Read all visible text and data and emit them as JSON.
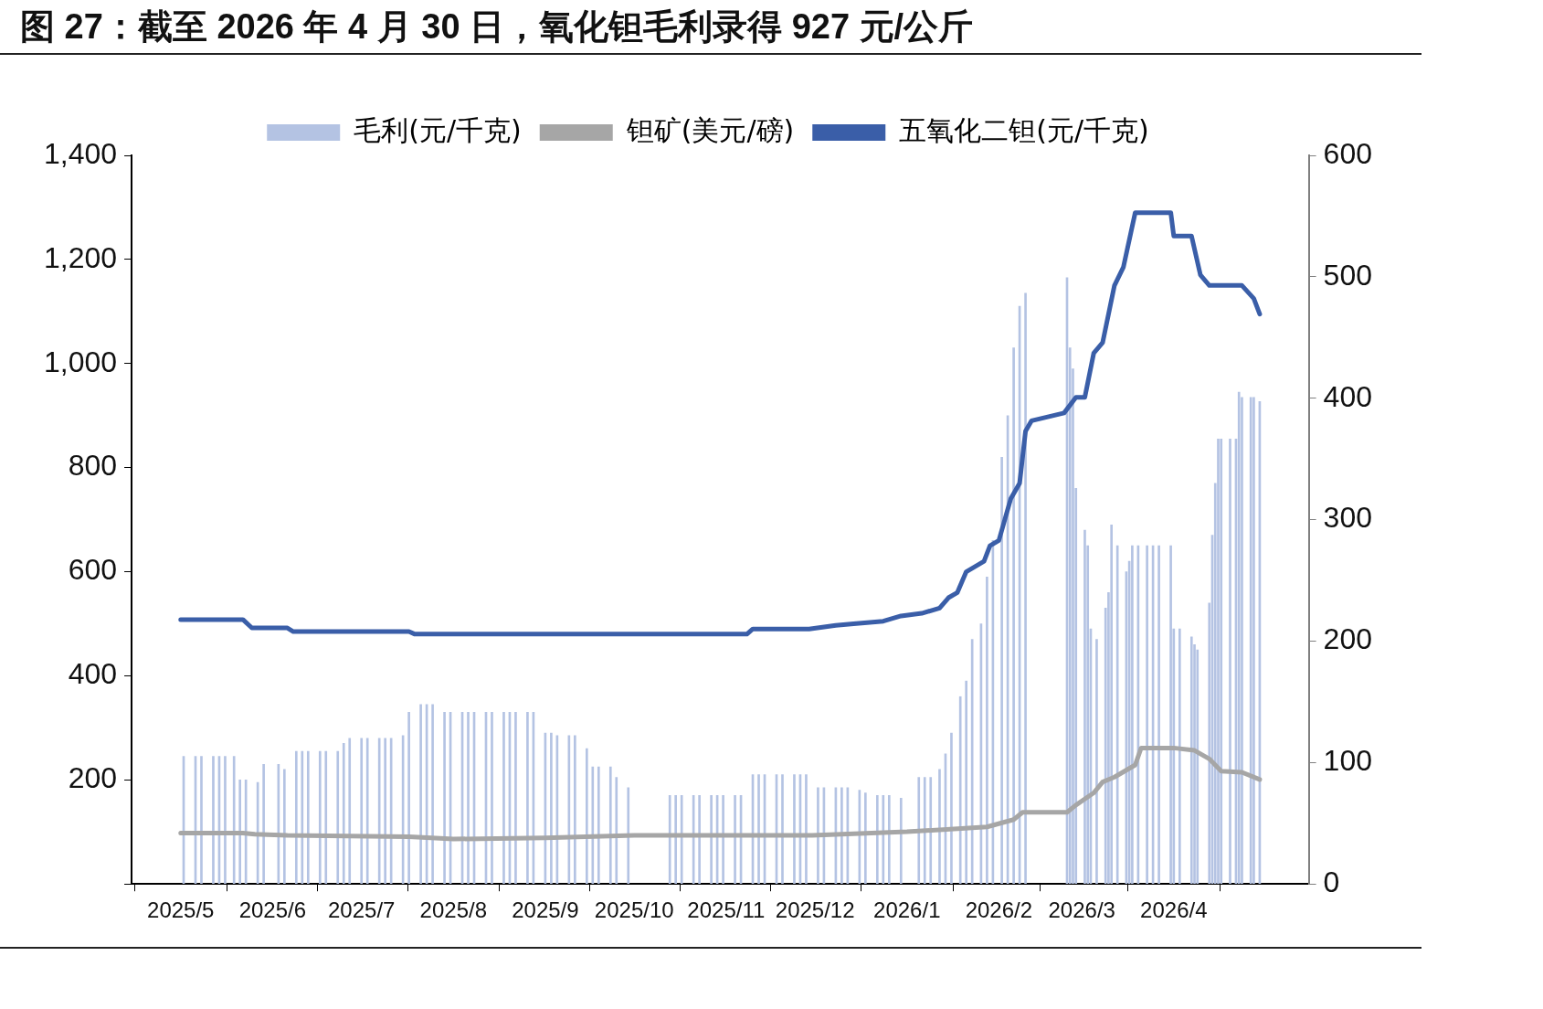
{
  "chart_data": {
    "type": "bar",
    "title": "图 27：截至 2026 年 4 月 30 日，氧化钽毛利录得 927 元/公斤",
    "legend": "top",
    "grid": false,
    "xlim": [
      "2025-05-01",
      "2026-04-30"
    ],
    "xticks": [
      {
        "value": "2025-05-01",
        "label": "2025/5"
      },
      {
        "value": "2025-06-01",
        "label": "2025/6"
      },
      {
        "value": "2025-07-01",
        "label": "2025/7"
      },
      {
        "value": "2025-08-01",
        "label": "2025/8"
      },
      {
        "value": "2025-09-01",
        "label": "2025/9"
      },
      {
        "value": "2025-10-01",
        "label": "2025/10"
      },
      {
        "value": "2025-11-01",
        "label": "2025/11"
      },
      {
        "value": "2025-12-01",
        "label": "2025/12"
      },
      {
        "value": "2026-01-01",
        "label": "2026/1"
      },
      {
        "value": "2026-02-01",
        "label": "2026/2"
      },
      {
        "value": "2026-03-01",
        "label": "2026/3"
      },
      {
        "value": "2026-04-01",
        "label": "2026/4"
      }
    ],
    "ylim": [
      0,
      1400
    ],
    "yticks": [
      {
        "value": 0,
        "label": null
      },
      200,
      400,
      600,
      800,
      {
        "value": 1000,
        "label": "1,000"
      },
      {
        "value": 1200,
        "label": "1,200"
      },
      {
        "value": 1400,
        "label": "1,400"
      }
    ],
    "y2lim": [
      0,
      600
    ],
    "y2ticks": [
      0,
      100,
      200,
      300,
      400,
      500,
      600
    ],
    "series": [
      {
        "name": "毛利(元/千克)",
        "color": "#b4c3e3",
        "x": [
          "2025-05-02",
          "2025-05-06",
          "2025-05-08",
          "2025-05-12",
          "2025-05-14",
          "2025-05-16",
          "2025-05-19",
          "2025-05-21",
          "2025-05-23",
          "2025-05-27",
          "2025-05-29",
          "2025-06-03",
          "2025-06-05",
          "2025-06-09",
          "2025-06-11",
          "2025-06-13",
          "2025-06-17",
          "2025-06-19",
          "2025-06-23",
          "2025-06-25",
          "2025-06-27",
          "2025-07-01",
          "2025-07-03",
          "2025-07-07",
          "2025-07-09",
          "2025-07-11",
          "2025-07-15",
          "2025-07-17",
          "2025-07-21",
          "2025-07-23",
          "2025-07-25",
          "2025-07-29",
          "2025-07-31",
          "2025-08-04",
          "2025-08-06",
          "2025-08-08",
          "2025-08-12",
          "2025-08-14",
          "2025-08-18",
          "2025-08-20",
          "2025-08-22",
          "2025-08-26",
          "2025-08-28",
          "2025-09-01",
          "2025-09-03",
          "2025-09-05",
          "2025-09-09",
          "2025-09-11",
          "2025-09-15",
          "2025-09-17",
          "2025-09-19",
          "2025-09-23",
          "2025-09-25",
          "2025-09-29",
          "2025-10-13",
          "2025-10-15",
          "2025-10-17",
          "2025-10-21",
          "2025-10-23",
          "2025-10-27",
          "2025-10-29",
          "2025-10-31",
          "2025-11-04",
          "2025-11-06",
          "2025-11-10",
          "2025-11-12",
          "2025-11-14",
          "2025-11-18",
          "2025-11-20",
          "2025-11-24",
          "2025-11-26",
          "2025-11-28",
          "2025-12-02",
          "2025-12-04",
          "2025-12-08",
          "2025-12-10",
          "2025-12-12",
          "2025-12-16",
          "2025-12-18",
          "2025-12-22",
          "2025-12-24",
          "2025-12-26",
          "2025-12-30",
          "2026-01-05",
          "2026-01-07",
          "2026-01-09",
          "2026-01-12",
          "2026-01-14",
          "2026-01-16",
          "2026-01-19",
          "2026-01-21",
          "2026-01-23",
          "2026-01-26",
          "2026-01-28",
          "2026-01-30",
          "2026-02-02",
          "2026-02-04",
          "2026-02-06",
          "2026-02-08",
          "2026-02-10",
          "2026-02-24",
          "2026-02-25",
          "2026-02-26",
          "2026-02-27",
          "2026-03-02",
          "2026-03-03",
          "2026-03-04",
          "2026-03-06",
          "2026-03-09",
          "2026-03-10",
          "2026-03-11",
          "2026-03-13",
          "2026-03-16",
          "2026-03-17",
          "2026-03-18",
          "2026-03-20",
          "2026-03-23",
          "2026-03-25",
          "2026-03-27",
          "2026-03-31",
          "2026-04-01",
          "2026-04-03",
          "2026-04-07",
          "2026-04-08",
          "2026-04-09",
          "2026-04-13",
          "2026-04-14",
          "2026-04-15",
          "2026-04-16",
          "2026-04-17",
          "2026-04-20",
          "2026-04-22",
          "2026-04-23",
          "2026-04-24",
          "2026-04-27",
          "2026-04-28",
          "2026-04-30"
        ],
        "values": [
          245,
          245,
          245,
          245,
          245,
          245,
          245,
          200,
          200,
          195,
          230,
          230,
          220,
          255,
          255,
          255,
          255,
          255,
          255,
          270,
          280,
          280,
          280,
          280,
          280,
          280,
          285,
          330,
          345,
          345,
          345,
          330,
          330,
          330,
          330,
          330,
          330,
          330,
          330,
          330,
          330,
          330,
          330,
          290,
          290,
          285,
          285,
          285,
          260,
          225,
          225,
          225,
          205,
          185,
          170,
          170,
          170,
          170,
          170,
          170,
          170,
          170,
          170,
          170,
          210,
          210,
          210,
          210,
          210,
          210,
          210,
          210,
          185,
          185,
          185,
          185,
          185,
          180,
          175,
          170,
          170,
          170,
          165,
          205,
          205,
          205,
          220,
          250,
          290,
          360,
          390,
          470,
          500,
          590,
          660,
          820,
          900,
          1030,
          1110,
          1135,
          1165,
          1030,
          990,
          760,
          680,
          650,
          490,
          470,
          530,
          560,
          690,
          650,
          600,
          620,
          650,
          650,
          650,
          650,
          650,
          650,
          490,
          490,
          475,
          460,
          450,
          540,
          670,
          770,
          855,
          855,
          855,
          855,
          945,
          935,
          935,
          935,
          927
        ]
      },
      {
        "name": "钽矿(美元/磅)",
        "type": "line",
        "axis": "y2",
        "color": "#a6a6a6",
        "x": [
          "2025-05-01",
          "2025-05-22",
          "2025-05-26",
          "2025-06-06",
          "2025-07-17",
          "2025-08-01",
          "2025-09-01",
          "2025-10-01",
          "2025-11-30",
          "2026-01-01",
          "2026-01-28",
          "2026-02-06",
          "2026-02-09",
          "2026-02-24",
          "2026-02-27",
          "2026-03-05",
          "2026-03-08",
          "2026-03-12",
          "2026-03-19",
          "2026-03-21",
          "2026-04-01",
          "2026-04-08",
          "2026-04-13",
          "2026-04-17",
          "2026-04-24",
          "2026-04-30"
        ],
        "values": [
          42,
          42,
          41,
          40,
          39,
          37,
          38,
          40,
          40,
          43,
          47,
          53,
          59,
          59,
          65,
          75,
          84,
          88,
          98,
          112,
          112,
          110,
          103,
          93,
          92,
          86
        ]
      },
      {
        "name": "五氧化二钽(元/千克)",
        "type": "line",
        "color": "#3a5ea8",
        "x": [
          "2025-05-01",
          "2025-05-22",
          "2025-05-25",
          "2025-06-06",
          "2025-06-08",
          "2025-07-17",
          "2025-07-19",
          "2025-11-08",
          "2025-11-10",
          "2025-11-29",
          "2025-12-08",
          "2025-12-14",
          "2025-12-24",
          "2025-12-30",
          "2026-01-06",
          "2026-01-12",
          "2026-01-15",
          "2026-01-18",
          "2026-01-21",
          "2026-01-24",
          "2026-01-27",
          "2026-01-29",
          "2026-02-01",
          "2026-02-05",
          "2026-02-08",
          "2026-02-10",
          "2026-02-12",
          "2026-02-23",
          "2026-02-27",
          "2026-03-02",
          "2026-03-05",
          "2026-03-08",
          "2026-03-12",
          "2026-03-15",
          "2026-03-19",
          "2026-03-31",
          "2026-04-01",
          "2026-04-07",
          "2026-04-10",
          "2026-04-13",
          "2026-04-24",
          "2026-04-28",
          "2026-04-30"
        ],
        "values": [
          508,
          508,
          492,
          492,
          485,
          485,
          480,
          480,
          490,
          490,
          497,
          500,
          505,
          515,
          520,
          530,
          550,
          560,
          600,
          610,
          620,
          650,
          660,
          740,
          770,
          870,
          890,
          905,
          935,
          935,
          1020,
          1040,
          1150,
          1185,
          1290,
          1290,
          1245,
          1245,
          1170,
          1150,
          1150,
          1125,
          1095
        ]
      }
    ]
  }
}
